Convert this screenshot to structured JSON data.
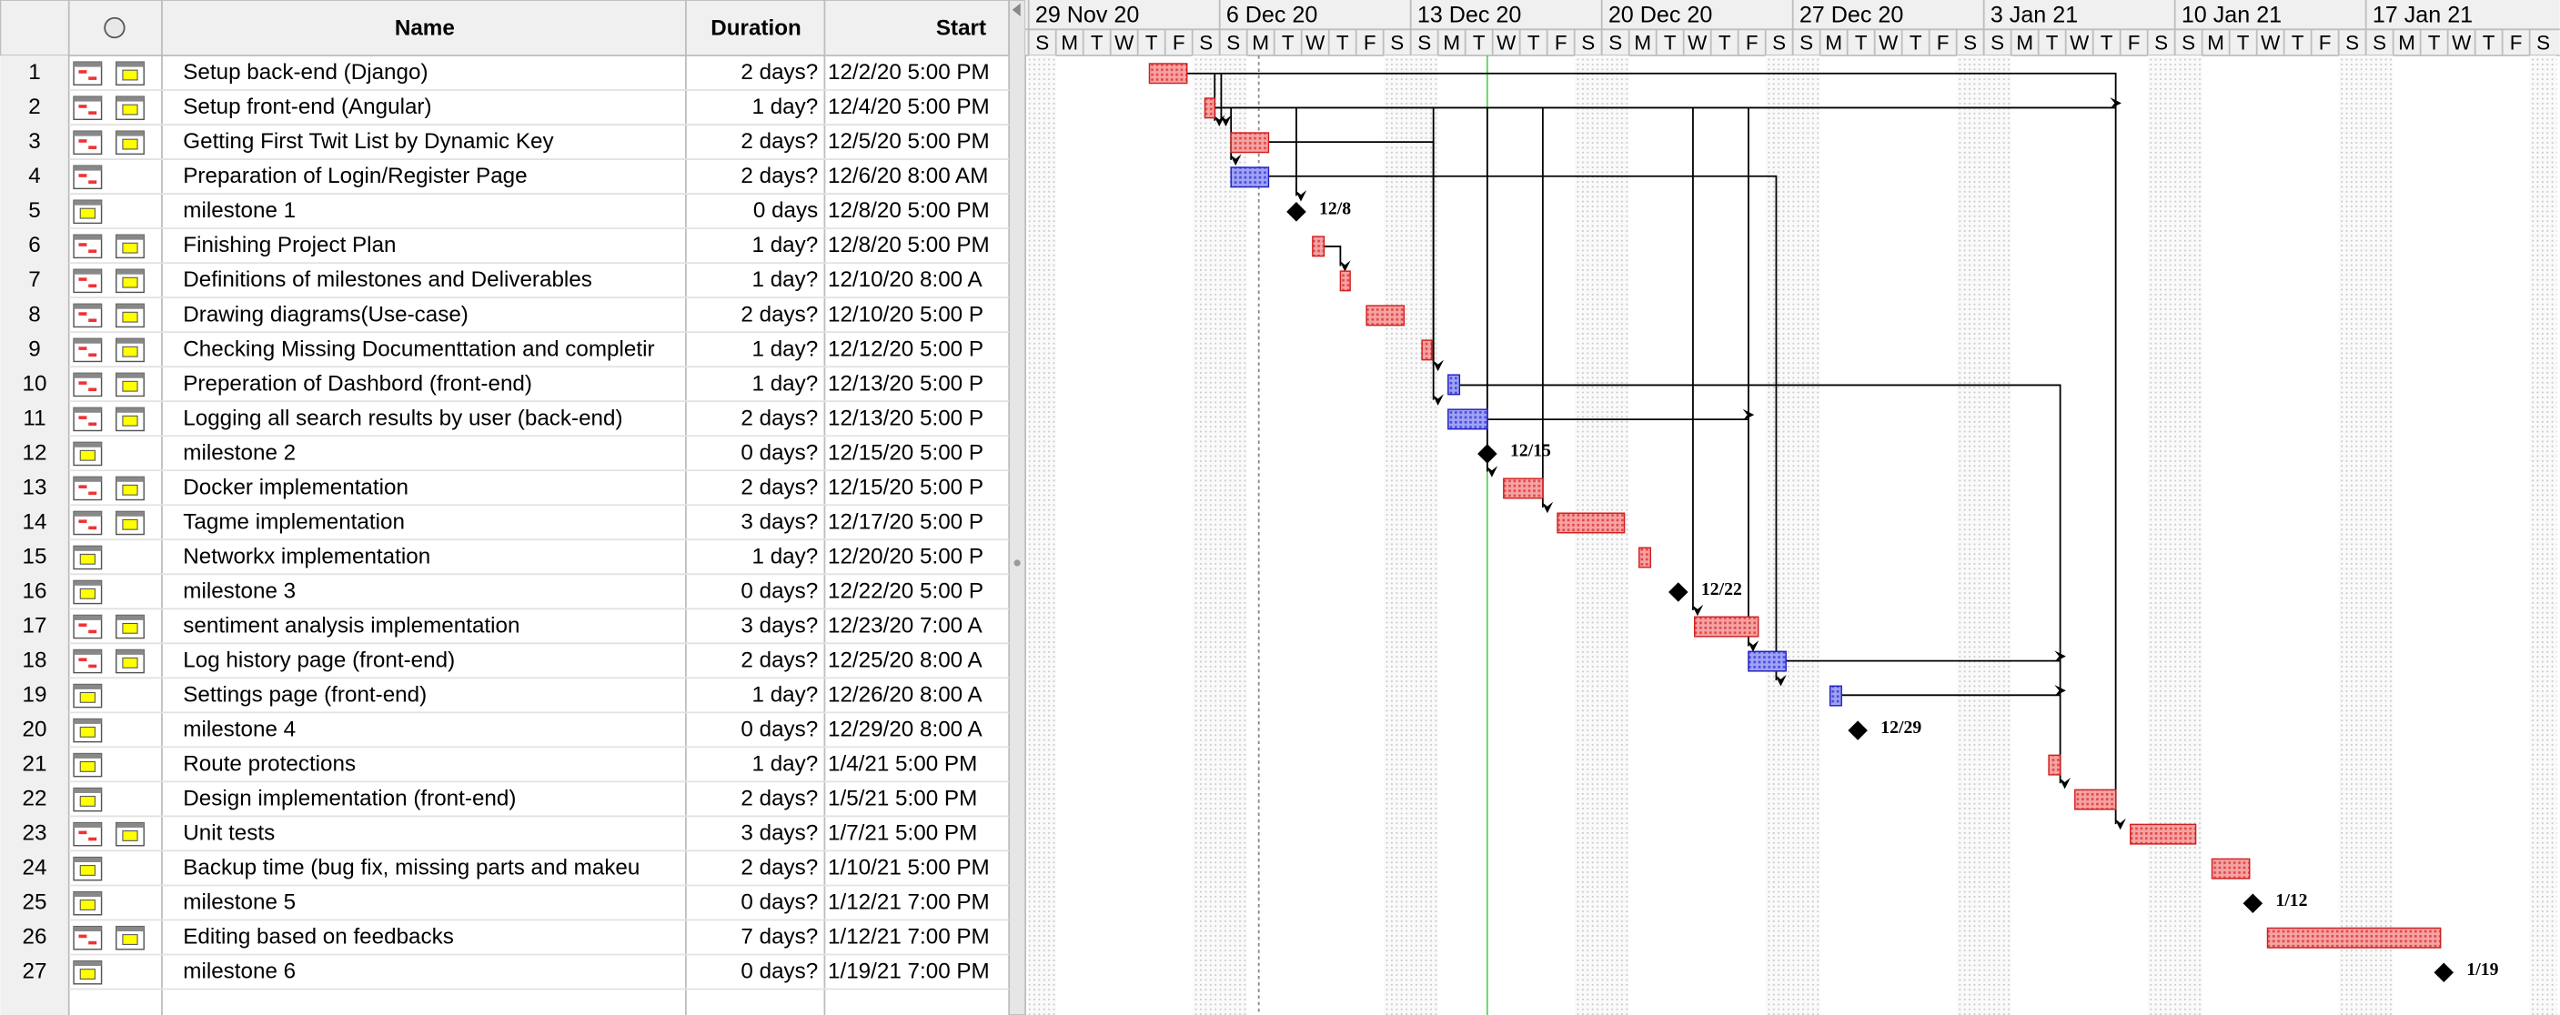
{
  "header": {
    "columns": [
      "Name",
      "Duration",
      "Start"
    ]
  },
  "timeline": {
    "weeks": [
      "29 Nov 20",
      "6 Dec 20",
      "13 Dec 20",
      "20 Dec 20",
      "27 Dec 20",
      "3 Jan 21",
      "10 Jan 21",
      "17 Jan 21"
    ],
    "days": [
      "S",
      "M",
      "T",
      "W",
      "T",
      "F",
      "S"
    ]
  },
  "tasks": [
    {
      "id": 1,
      "name": "Setup back-end (Django)",
      "duration": "2 days?",
      "start": "12/2/20 5:00 PM"
    },
    {
      "id": 2,
      "name": "Setup front-end (Angular)",
      "duration": "1 day?",
      "start": "12/4/20 5:00 PM"
    },
    {
      "id": 3,
      "name": "Getting First Twit List by Dynamic Key",
      "duration": "2 days?",
      "start": "12/5/20 5:00 PM"
    },
    {
      "id": 4,
      "name": "Preparation of Login/Register Page",
      "duration": "2 days?",
      "start": "12/6/20 8:00 AM"
    },
    {
      "id": 5,
      "name": "milestone 1",
      "duration": "0 days",
      "start": "12/8/20 5:00 PM",
      "label": "12/8"
    },
    {
      "id": 6,
      "name": "Finishing Project Plan",
      "duration": "1 day?",
      "start": "12/8/20 5:00 PM"
    },
    {
      "id": 7,
      "name": "Definitions of milestones and Deliverables",
      "duration": "1 day?",
      "start": "12/10/20 8:00 A"
    },
    {
      "id": 8,
      "name": "Drawing diagrams(Use-case)",
      "duration": "2 days?",
      "start": "12/10/20 5:00 P"
    },
    {
      "id": 9,
      "name": "Checking Missing Documenttation and completir",
      "duration": "1 day?",
      "start": "12/12/20 5:00 P"
    },
    {
      "id": 10,
      "name": "Preperation of Dashbord (front-end)",
      "duration": "1 day?",
      "start": "12/13/20 5:00 P"
    },
    {
      "id": 11,
      "name": "Logging all search results by user (back-end)",
      "duration": "2 days?",
      "start": "12/13/20 5:00 P"
    },
    {
      "id": 12,
      "name": "milestone 2",
      "duration": "0 days?",
      "start": "12/15/20 5:00 P",
      "label": "12/15"
    },
    {
      "id": 13,
      "name": "Docker implementation",
      "duration": "2 days?",
      "start": "12/15/20 5:00 P"
    },
    {
      "id": 14,
      "name": "Tagme implementation",
      "duration": "3 days?",
      "start": "12/17/20 5:00 P"
    },
    {
      "id": 15,
      "name": "Networkx implementation",
      "duration": "1 day?",
      "start": "12/20/20 5:00 P"
    },
    {
      "id": 16,
      "name": "milestone 3",
      "duration": "0 days?",
      "start": "12/22/20 5:00 P",
      "label": "12/22"
    },
    {
      "id": 17,
      "name": "sentiment analysis implementation",
      "duration": "3 days?",
      "start": "12/23/20 7:00 A"
    },
    {
      "id": 18,
      "name": "Log history page (front-end)",
      "duration": "2 days?",
      "start": "12/25/20 8:00 A"
    },
    {
      "id": 19,
      "name": "Settings page (front-end)",
      "duration": "1 day?",
      "start": "12/26/20 8:00 A"
    },
    {
      "id": 20,
      "name": "milestone 4",
      "duration": "0 days?",
      "start": "12/29/20 8:00 A",
      "label": "12/29"
    },
    {
      "id": 21,
      "name": "Route protections",
      "duration": "1 day?",
      "start": "1/4/21 5:00 PM"
    },
    {
      "id": 22,
      "name": "Design implementation (front-end)",
      "duration": "2 days?",
      "start": "1/5/21 5:00 PM"
    },
    {
      "id": 23,
      "name": "Unit tests",
      "duration": "3 days?",
      "start": "1/7/21 5:00 PM"
    },
    {
      "id": 24,
      "name": "Backup time (bug fix, missing parts and makeu",
      "duration": "2 days?",
      "start": "1/10/21 5:00 PM"
    },
    {
      "id": 25,
      "name": "milestone 5",
      "duration": "0 days?",
      "start": "1/12/21 7:00 PM",
      "label": "1/12"
    },
    {
      "id": 26,
      "name": "Editing based on feedbacks",
      "duration": "7 days?",
      "start": "1/12/21 7:00 PM"
    },
    {
      "id": 27,
      "name": "milestone 6",
      "duration": "0 days?",
      "start": "1/19/21 7:00 PM",
      "label": "1/19"
    }
  ]
}
